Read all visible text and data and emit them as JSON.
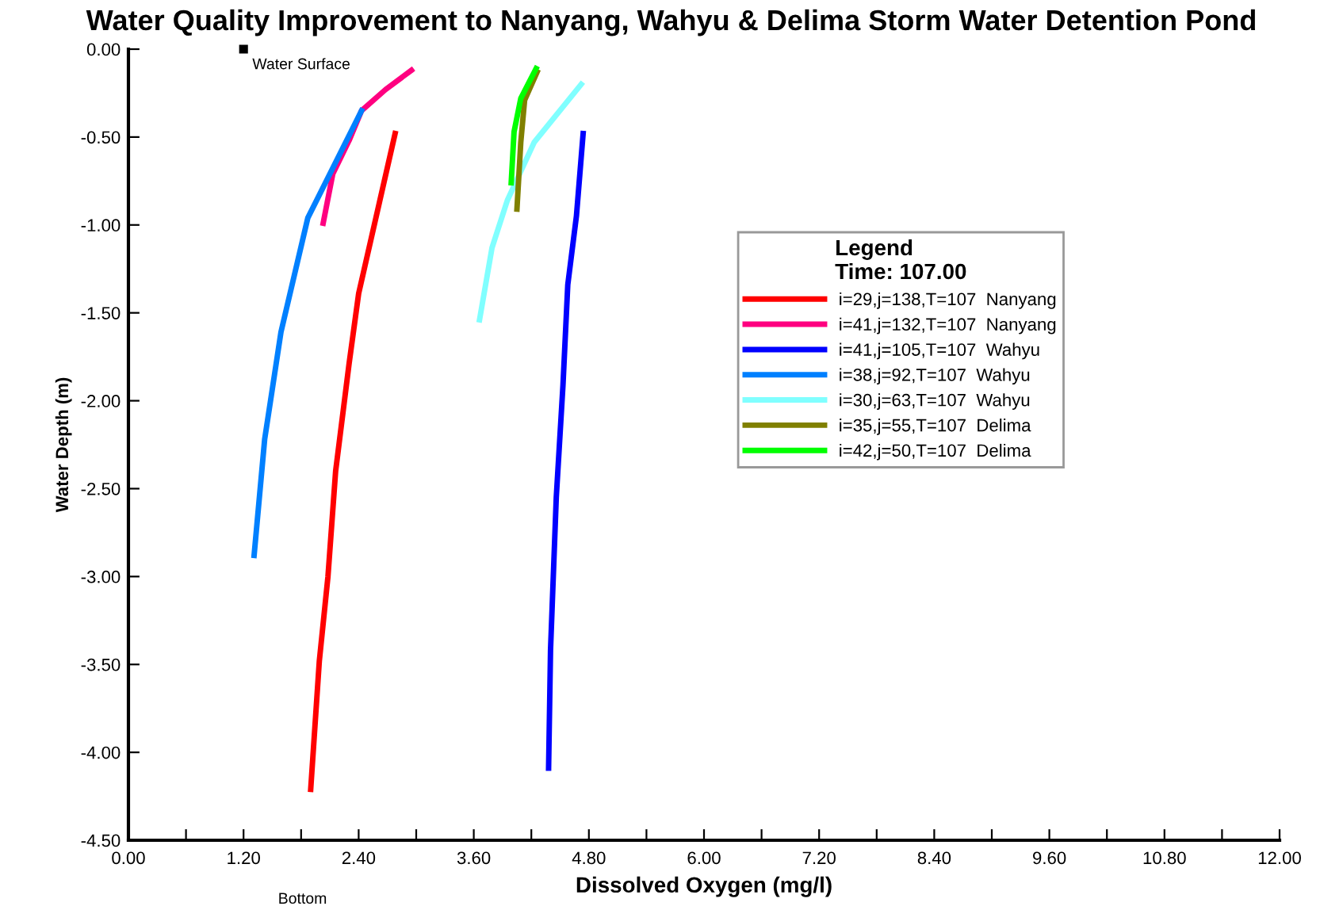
{
  "chart_data": {
    "type": "line",
    "title": "Water Quality Improvement to Nanyang, Wahyu & Delima Storm Water Detention Pond",
    "xlabel": "Dissolved Oxygen (mg/l)",
    "ylabel": "Water Depth (m)",
    "legend_title": "Legend\nTime: 107.00",
    "legend": "right",
    "grid": false,
    "marker": "none",
    "line_style": "solid",
    "xlim": [
      0,
      12
    ],
    "ylim": [
      -4.5,
      0
    ],
    "xticks": [
      {
        "value": 0,
        "label": "0.00"
      },
      {
        "value": 0.6,
        "label": null
      },
      {
        "value": 1.2,
        "label": "1.20"
      },
      {
        "value": 1.8,
        "label": null
      },
      {
        "value": 2.4,
        "label": "2.40"
      },
      {
        "value": 3.0,
        "label": null
      },
      {
        "value": 3.6,
        "label": "3.60"
      },
      {
        "value": 4.2,
        "label": null
      },
      {
        "value": 4.8,
        "label": "4.80"
      },
      {
        "value": 5.4,
        "label": null
      },
      {
        "value": 6.0,
        "label": "6.00"
      },
      {
        "value": 6.6,
        "label": null
      },
      {
        "value": 7.2,
        "label": "7.20"
      },
      {
        "value": 7.8,
        "label": null
      },
      {
        "value": 8.4,
        "label": "8.40"
      },
      {
        "value": 9.0,
        "label": null
      },
      {
        "value": 9.6,
        "label": "9.60"
      },
      {
        "value": 10.2,
        "label": null
      },
      {
        "value": 10.8,
        "label": "10.80"
      },
      {
        "value": 11.4,
        "label": null
      },
      {
        "value": 12,
        "label": "12.00"
      }
    ],
    "yticks": [
      {
        "value": 0,
        "label": "0.00"
      },
      {
        "value": -0.5,
        "label": "-0.50"
      },
      {
        "value": -1,
        "label": "-1.00"
      },
      {
        "value": -1.5,
        "label": "-1.50"
      },
      {
        "value": -2,
        "label": "-2.00"
      },
      {
        "value": -2.5,
        "label": "-2.50"
      },
      {
        "value": -3,
        "label": "-3.00"
      },
      {
        "value": -3.5,
        "label": "-3.50"
      },
      {
        "value": -4,
        "label": "-4.00"
      },
      {
        "value": -4.5,
        "label": "-4.50"
      }
    ],
    "annotations": [
      {
        "text": "Water Surface",
        "x": 1.2,
        "y": 0
      },
      "Bottom"
    ],
    "series": [
      {
        "name": "i=29,j=138,T=107  Nanyang",
        "color": "#ff0000",
        "x": [
          2.78,
          2.4,
          2.3,
          2.16,
          2.08,
          1.99,
          1.9
        ],
        "values": [
          -0.48,
          -1.39,
          -1.79,
          -2.4,
          -3.0,
          -3.48,
          -4.21
        ]
      },
      {
        "name": "i=41,j=132,T=107  Nanyang",
        "color": "#ff0080",
        "x": [
          2.95,
          2.68,
          2.43,
          2.3,
          2.13,
          2.03
        ],
        "values": [
          -0.12,
          -0.23,
          -0.35,
          -0.52,
          -0.71,
          -0.99
        ]
      },
      {
        "name": "i=41,j=105,T=107  Wahyu",
        "color": "#0000ff",
        "x": [
          4.74,
          4.67,
          4.58,
          4.53,
          4.46,
          4.4,
          4.38
        ],
        "values": [
          -0.48,
          -0.95,
          -1.34,
          -1.91,
          -2.55,
          -3.42,
          -4.09
        ]
      },
      {
        "name": "i=38,j=92,T=107  Wahyu",
        "color": "#0080ff",
        "x": [
          2.43,
          1.87,
          1.59,
          1.42,
          1.31
        ],
        "values": [
          -0.35,
          -0.96,
          -1.61,
          -2.22,
          -2.88
        ]
      },
      {
        "name": "i=30,j=63,T=107  Wahyu",
        "color": "#80ffff",
        "x": [
          4.72,
          4.23,
          3.95,
          3.79,
          3.66
        ],
        "values": [
          -0.2,
          -0.53,
          -0.86,
          -1.13,
          -1.54
        ]
      },
      {
        "name": "i=35,j=55,T=107  Delima",
        "color": "#808000",
        "x": [
          4.26,
          4.13,
          4.09,
          4.05
        ],
        "values": [
          -0.13,
          -0.29,
          -0.53,
          -0.91
        ]
      },
      {
        "name": "i=42,j=50,T=107  Delima",
        "color": "#00ff00",
        "x": [
          4.25,
          4.09,
          4.02,
          3.99
        ],
        "values": [
          -0.11,
          -0.28,
          -0.47,
          -0.76
        ]
      }
    ]
  }
}
